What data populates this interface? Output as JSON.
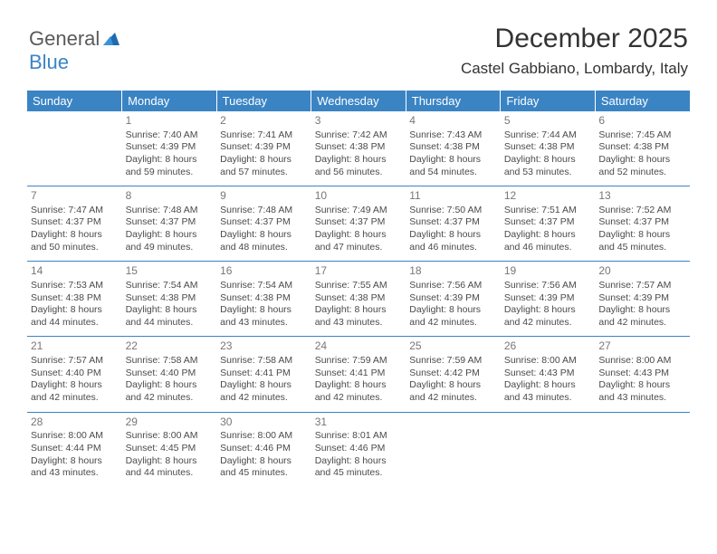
{
  "logo": {
    "part1": "General",
    "part2": "Blue"
  },
  "title": "December 2025",
  "subtitle": "Castel Gabbiano, Lombardy, Italy",
  "header_bg": "#3a84c4",
  "header_fg": "#ffffff",
  "divider_color": "#3a84c4",
  "weekdays": [
    "Sunday",
    "Monday",
    "Tuesday",
    "Wednesday",
    "Thursday",
    "Friday",
    "Saturday"
  ],
  "weeks": [
    [
      null,
      {
        "n": "1",
        "sr": "Sunrise: 7:40 AM",
        "ss": "Sunset: 4:39 PM",
        "dl": "Daylight: 8 hours and 59 minutes."
      },
      {
        "n": "2",
        "sr": "Sunrise: 7:41 AM",
        "ss": "Sunset: 4:39 PM",
        "dl": "Daylight: 8 hours and 57 minutes."
      },
      {
        "n": "3",
        "sr": "Sunrise: 7:42 AM",
        "ss": "Sunset: 4:38 PM",
        "dl": "Daylight: 8 hours and 56 minutes."
      },
      {
        "n": "4",
        "sr": "Sunrise: 7:43 AM",
        "ss": "Sunset: 4:38 PM",
        "dl": "Daylight: 8 hours and 54 minutes."
      },
      {
        "n": "5",
        "sr": "Sunrise: 7:44 AM",
        "ss": "Sunset: 4:38 PM",
        "dl": "Daylight: 8 hours and 53 minutes."
      },
      {
        "n": "6",
        "sr": "Sunrise: 7:45 AM",
        "ss": "Sunset: 4:38 PM",
        "dl": "Daylight: 8 hours and 52 minutes."
      }
    ],
    [
      {
        "n": "7",
        "sr": "Sunrise: 7:47 AM",
        "ss": "Sunset: 4:37 PM",
        "dl": "Daylight: 8 hours and 50 minutes."
      },
      {
        "n": "8",
        "sr": "Sunrise: 7:48 AM",
        "ss": "Sunset: 4:37 PM",
        "dl": "Daylight: 8 hours and 49 minutes."
      },
      {
        "n": "9",
        "sr": "Sunrise: 7:48 AM",
        "ss": "Sunset: 4:37 PM",
        "dl": "Daylight: 8 hours and 48 minutes."
      },
      {
        "n": "10",
        "sr": "Sunrise: 7:49 AM",
        "ss": "Sunset: 4:37 PM",
        "dl": "Daylight: 8 hours and 47 minutes."
      },
      {
        "n": "11",
        "sr": "Sunrise: 7:50 AM",
        "ss": "Sunset: 4:37 PM",
        "dl": "Daylight: 8 hours and 46 minutes."
      },
      {
        "n": "12",
        "sr": "Sunrise: 7:51 AM",
        "ss": "Sunset: 4:37 PM",
        "dl": "Daylight: 8 hours and 46 minutes."
      },
      {
        "n": "13",
        "sr": "Sunrise: 7:52 AM",
        "ss": "Sunset: 4:37 PM",
        "dl": "Daylight: 8 hours and 45 minutes."
      }
    ],
    [
      {
        "n": "14",
        "sr": "Sunrise: 7:53 AM",
        "ss": "Sunset: 4:38 PM",
        "dl": "Daylight: 8 hours and 44 minutes."
      },
      {
        "n": "15",
        "sr": "Sunrise: 7:54 AM",
        "ss": "Sunset: 4:38 PM",
        "dl": "Daylight: 8 hours and 44 minutes."
      },
      {
        "n": "16",
        "sr": "Sunrise: 7:54 AM",
        "ss": "Sunset: 4:38 PM",
        "dl": "Daylight: 8 hours and 43 minutes."
      },
      {
        "n": "17",
        "sr": "Sunrise: 7:55 AM",
        "ss": "Sunset: 4:38 PM",
        "dl": "Daylight: 8 hours and 43 minutes."
      },
      {
        "n": "18",
        "sr": "Sunrise: 7:56 AM",
        "ss": "Sunset: 4:39 PM",
        "dl": "Daylight: 8 hours and 42 minutes."
      },
      {
        "n": "19",
        "sr": "Sunrise: 7:56 AM",
        "ss": "Sunset: 4:39 PM",
        "dl": "Daylight: 8 hours and 42 minutes."
      },
      {
        "n": "20",
        "sr": "Sunrise: 7:57 AM",
        "ss": "Sunset: 4:39 PM",
        "dl": "Daylight: 8 hours and 42 minutes."
      }
    ],
    [
      {
        "n": "21",
        "sr": "Sunrise: 7:57 AM",
        "ss": "Sunset: 4:40 PM",
        "dl": "Daylight: 8 hours and 42 minutes."
      },
      {
        "n": "22",
        "sr": "Sunrise: 7:58 AM",
        "ss": "Sunset: 4:40 PM",
        "dl": "Daylight: 8 hours and 42 minutes."
      },
      {
        "n": "23",
        "sr": "Sunrise: 7:58 AM",
        "ss": "Sunset: 4:41 PM",
        "dl": "Daylight: 8 hours and 42 minutes."
      },
      {
        "n": "24",
        "sr": "Sunrise: 7:59 AM",
        "ss": "Sunset: 4:41 PM",
        "dl": "Daylight: 8 hours and 42 minutes."
      },
      {
        "n": "25",
        "sr": "Sunrise: 7:59 AM",
        "ss": "Sunset: 4:42 PM",
        "dl": "Daylight: 8 hours and 42 minutes."
      },
      {
        "n": "26",
        "sr": "Sunrise: 8:00 AM",
        "ss": "Sunset: 4:43 PM",
        "dl": "Daylight: 8 hours and 43 minutes."
      },
      {
        "n": "27",
        "sr": "Sunrise: 8:00 AM",
        "ss": "Sunset: 4:43 PM",
        "dl": "Daylight: 8 hours and 43 minutes."
      }
    ],
    [
      {
        "n": "28",
        "sr": "Sunrise: 8:00 AM",
        "ss": "Sunset: 4:44 PM",
        "dl": "Daylight: 8 hours and 43 minutes."
      },
      {
        "n": "29",
        "sr": "Sunrise: 8:00 AM",
        "ss": "Sunset: 4:45 PM",
        "dl": "Daylight: 8 hours and 44 minutes."
      },
      {
        "n": "30",
        "sr": "Sunrise: 8:00 AM",
        "ss": "Sunset: 4:46 PM",
        "dl": "Daylight: 8 hours and 45 minutes."
      },
      {
        "n": "31",
        "sr": "Sunrise: 8:01 AM",
        "ss": "Sunset: 4:46 PM",
        "dl": "Daylight: 8 hours and 45 minutes."
      },
      null,
      null,
      null
    ]
  ]
}
